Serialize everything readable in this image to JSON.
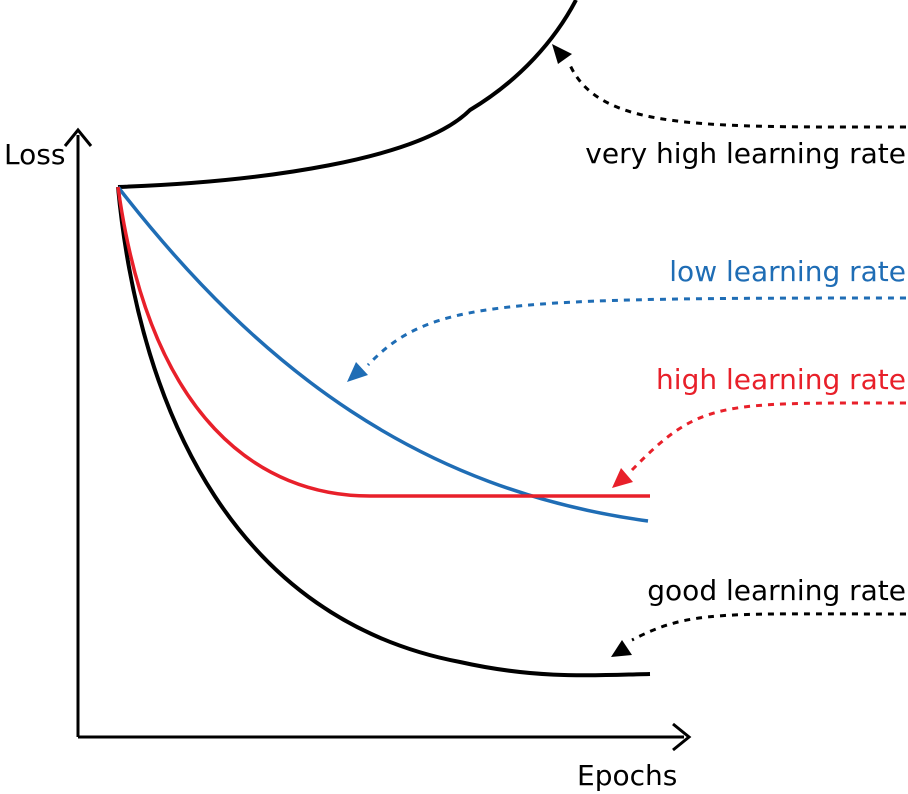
{
  "axes": {
    "y_label": "Loss",
    "x_label": "Epochs"
  },
  "labels": {
    "very_high": "very high learning rate",
    "low": "low learning rate",
    "high": "high learning rate",
    "good": "good learning rate"
  },
  "colors": {
    "very_high": "#000000",
    "low": "#1f6db5",
    "high": "#e8202a",
    "good": "#000000",
    "axis": "#000000"
  }
}
